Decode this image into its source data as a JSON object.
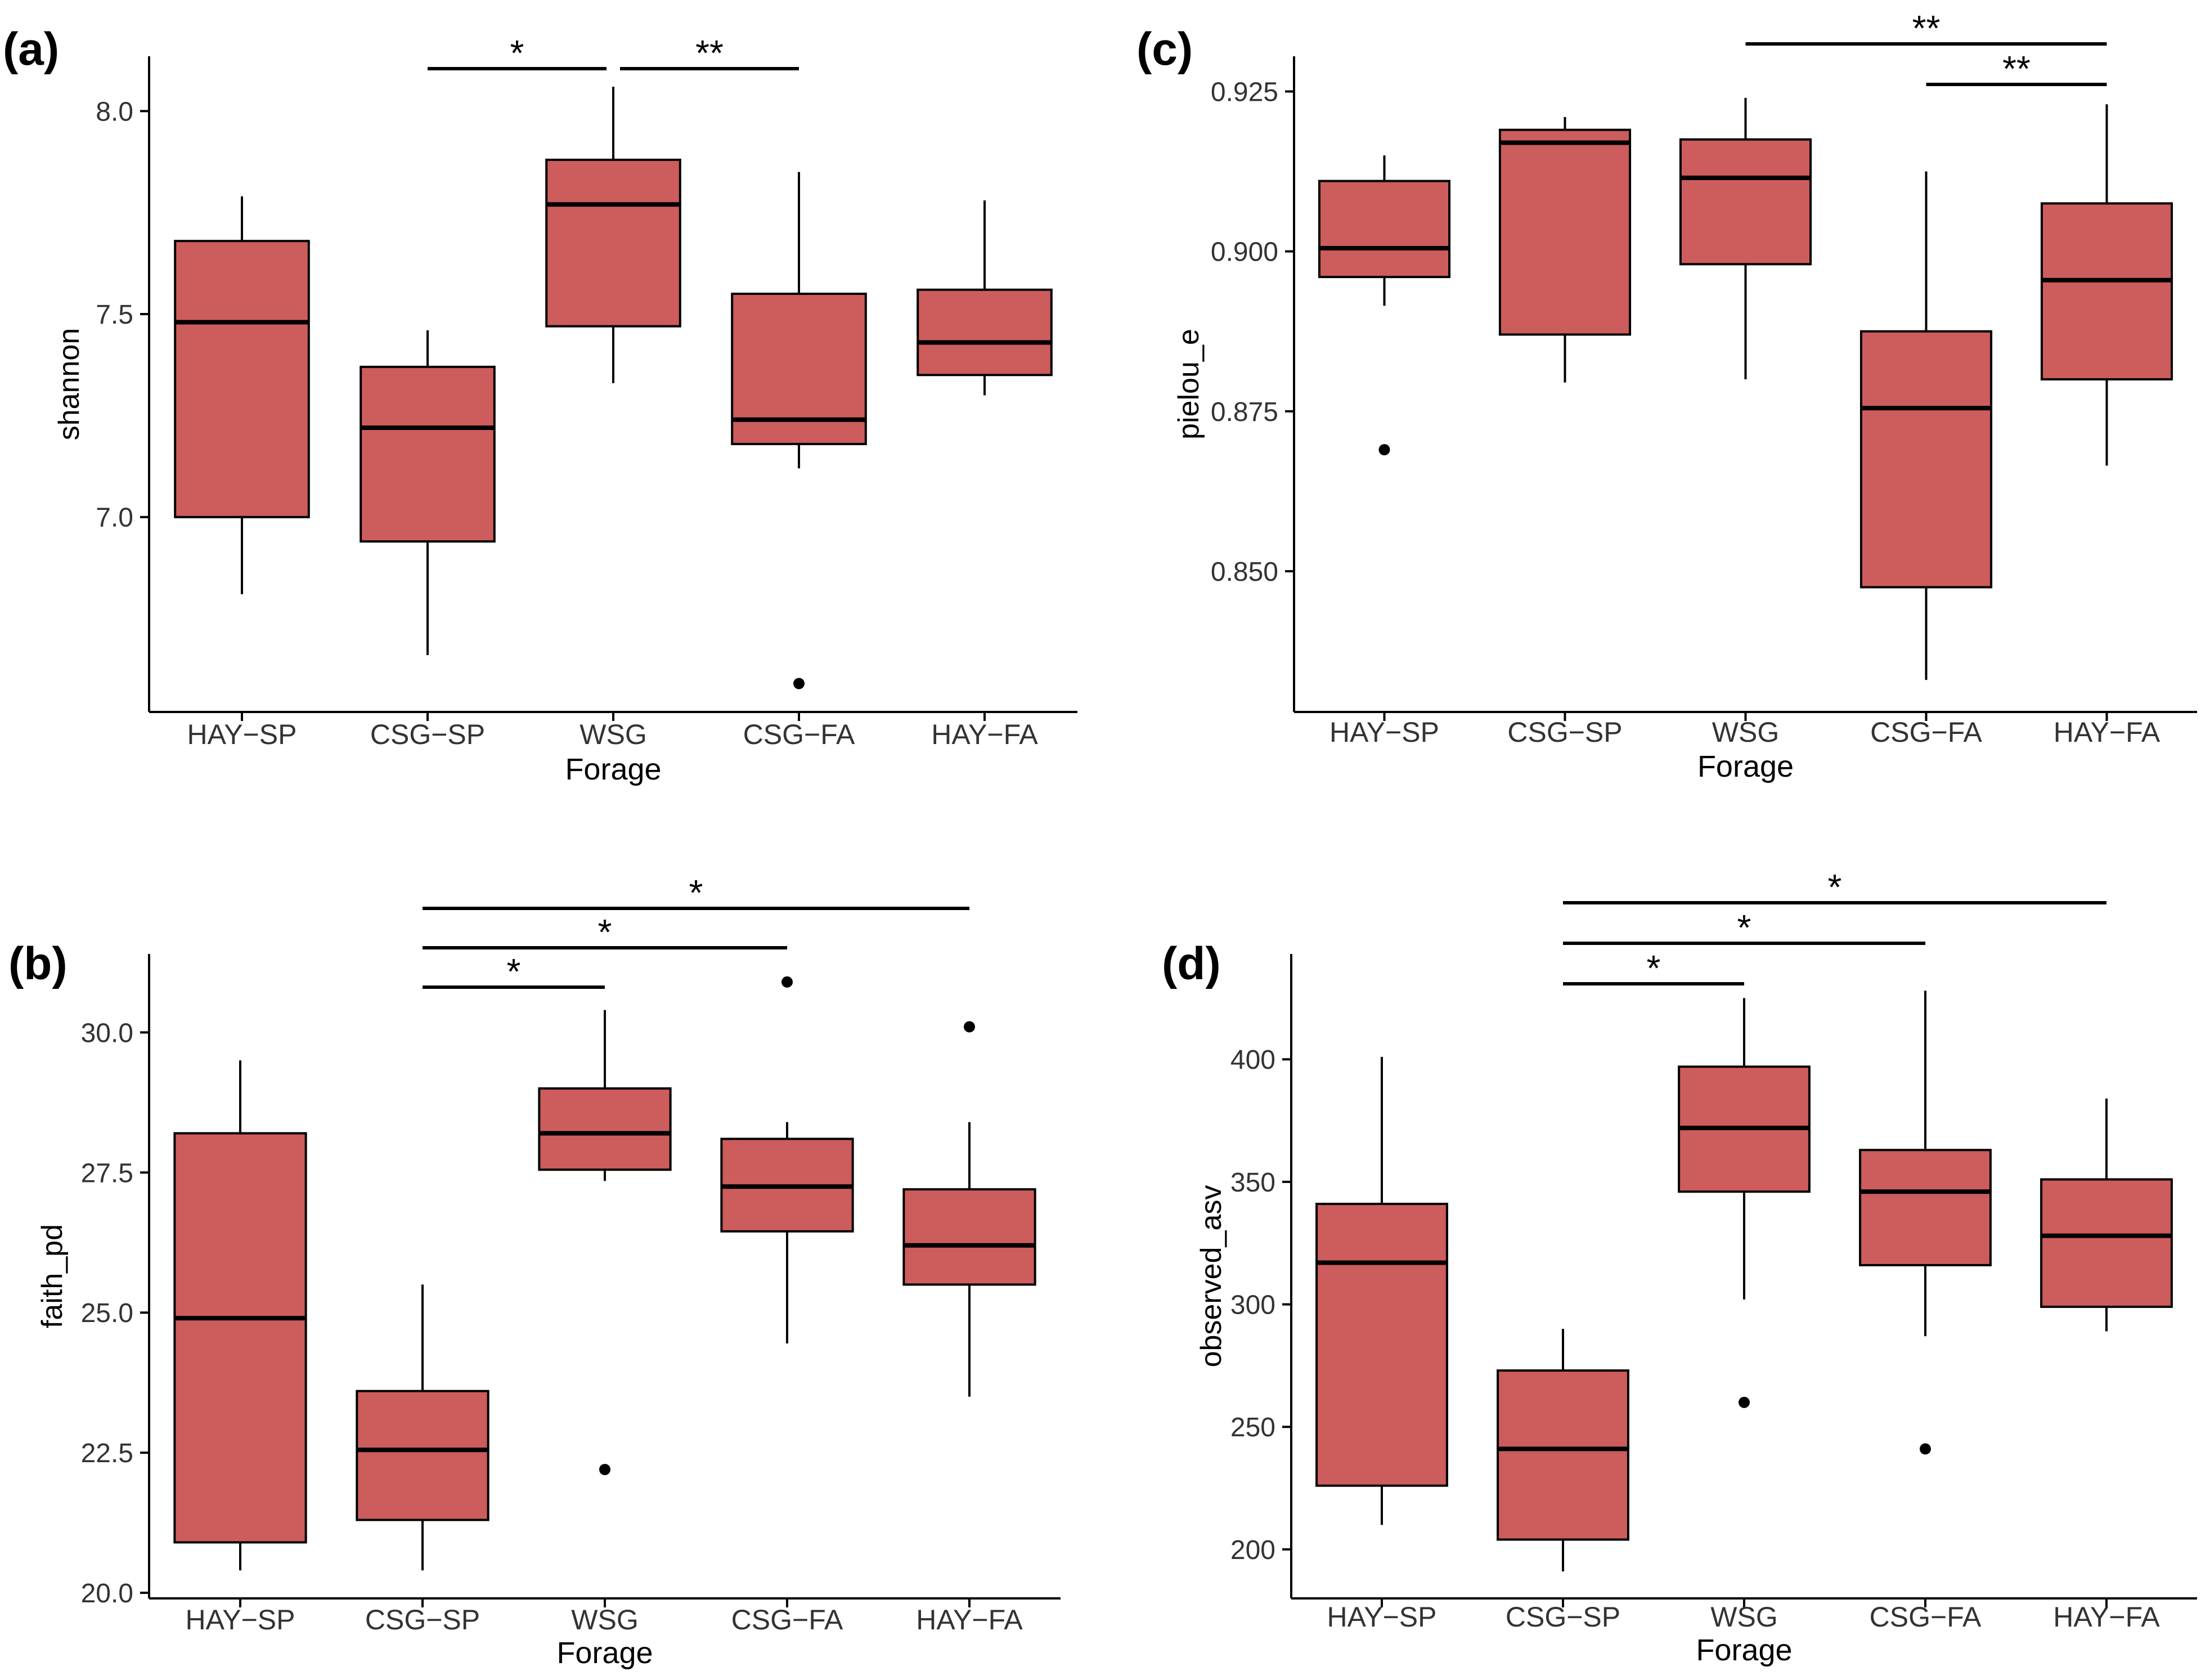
{
  "figure": {
    "box_fill": "#cd5c5c",
    "stroke": "#000000"
  },
  "chart_data": [
    {
      "id": "a",
      "type": "box",
      "panel_label": "(a)",
      "xlabel": "Forage",
      "ylabel": "shannon",
      "ylim": [
        6.52,
        8.135
      ],
      "yticks": [
        7.0,
        7.5,
        8.0
      ],
      "ytick_labels": [
        "7.0",
        "7.5",
        "8.0"
      ],
      "grid": false,
      "categories": [
        "HAY−SP",
        "CSG−SP",
        "WSG",
        "CSG−FA",
        "HAY−FA"
      ],
      "boxes": [
        {
          "whisker_low": 6.81,
          "q1": 7.0,
          "median": 7.48,
          "q3": 7.68,
          "whisker_high": 7.79,
          "outliers": []
        },
        {
          "whisker_low": 6.66,
          "q1": 6.94,
          "median": 7.22,
          "q3": 7.37,
          "whisker_high": 7.46,
          "outliers": []
        },
        {
          "whisker_low": 7.33,
          "q1": 7.47,
          "median": 7.77,
          "q3": 7.88,
          "whisker_high": 8.06,
          "outliers": []
        },
        {
          "whisker_low": 7.12,
          "q1": 7.18,
          "median": 7.24,
          "q3": 7.55,
          "whisker_high": 7.85,
          "outliers": [
            6.59
          ]
        },
        {
          "whisker_low": 7.3,
          "q1": 7.35,
          "median": 7.43,
          "q3": 7.56,
          "whisker_high": 7.78,
          "outliers": []
        }
      ],
      "significance": [
        {
          "from": 1,
          "to": 2,
          "label": "*",
          "level": 1
        },
        {
          "from": 2,
          "to": 3,
          "label": "**",
          "level": 1
        }
      ]
    },
    {
      "id": "b",
      "type": "box",
      "panel_label": "(b)",
      "xlabel": "Forage",
      "ylabel": "faith_pd",
      "ylim": [
        19.9,
        31.4
      ],
      "yticks": [
        20.0,
        22.5,
        25.0,
        27.5,
        30.0
      ],
      "ytick_labels": [
        "20.0",
        "22.5",
        "25.0",
        "27.5",
        "30.0"
      ],
      "grid": false,
      "categories": [
        "HAY−SP",
        "CSG−SP",
        "WSG",
        "CSG−FA",
        "HAY−FA"
      ],
      "boxes": [
        {
          "whisker_low": 20.4,
          "q1": 20.9,
          "median": 24.9,
          "q3": 28.2,
          "whisker_high": 29.5,
          "outliers": []
        },
        {
          "whisker_low": 20.4,
          "q1": 21.3,
          "median": 22.55,
          "q3": 23.6,
          "whisker_high": 25.5,
          "outliers": []
        },
        {
          "whisker_low": 27.35,
          "q1": 27.55,
          "median": 28.2,
          "q3": 29.0,
          "whisker_high": 30.4,
          "outliers": [
            22.2
          ]
        },
        {
          "whisker_low": 24.45,
          "q1": 26.45,
          "median": 27.25,
          "q3": 28.1,
          "whisker_high": 28.4,
          "outliers": [
            30.9
          ]
        },
        {
          "whisker_low": 23.5,
          "q1": 25.5,
          "median": 26.2,
          "q3": 27.2,
          "whisker_high": 28.4,
          "outliers": [
            30.1
          ]
        }
      ],
      "significance": [
        {
          "from": 1,
          "to": 2,
          "label": "*",
          "level": 1
        },
        {
          "from": 1,
          "to": 3,
          "label": "*",
          "level": 2
        },
        {
          "from": 1,
          "to": 4,
          "label": "*",
          "level": 3
        }
      ]
    },
    {
      "id": "c",
      "type": "box",
      "panel_label": "(c)",
      "xlabel": "Forage",
      "ylabel": "pielou_e",
      "ylim": [
        0.828,
        0.9305
      ],
      "yticks": [
        0.85,
        0.875,
        0.9,
        0.925
      ],
      "ytick_labels": [
        "0.850",
        "0.875",
        "0.900",
        "0.925"
      ],
      "grid": false,
      "categories": [
        "HAY−SP",
        "CSG−SP",
        "WSG",
        "CSG−FA",
        "HAY−FA"
      ],
      "boxes": [
        {
          "whisker_low": 0.8915,
          "q1": 0.896,
          "median": 0.9005,
          "q3": 0.911,
          "whisker_high": 0.915,
          "outliers": [
            0.869
          ]
        },
        {
          "whisker_low": 0.8795,
          "q1": 0.887,
          "median": 0.917,
          "q3": 0.919,
          "whisker_high": 0.921,
          "outliers": []
        },
        {
          "whisker_low": 0.88,
          "q1": 0.898,
          "median": 0.9115,
          "q3": 0.9175,
          "whisker_high": 0.924,
          "outliers": []
        },
        {
          "whisker_low": 0.833,
          "q1": 0.8475,
          "median": 0.8755,
          "q3": 0.8875,
          "whisker_high": 0.9125,
          "outliers": []
        },
        {
          "whisker_low": 0.8665,
          "q1": 0.88,
          "median": 0.8955,
          "q3": 0.9075,
          "whisker_high": 0.923,
          "outliers": []
        }
      ],
      "significance": [
        {
          "from": 3,
          "to": 4,
          "label": "**",
          "level": 1
        },
        {
          "from": 2,
          "to": 4,
          "label": "**",
          "level": 2
        }
      ]
    },
    {
      "id": "d",
      "type": "box",
      "panel_label": "(d)",
      "xlabel": "Forage",
      "ylabel": "observed_asv",
      "ylim": [
        180,
        443
      ],
      "yticks": [
        200,
        250,
        300,
        350,
        400
      ],
      "ytick_labels": [
        "200",
        "250",
        "300",
        "350",
        "400"
      ],
      "grid": false,
      "categories": [
        "HAY−SP",
        "CSG−SP",
        "WSG",
        "CSG−FA",
        "HAY−FA"
      ],
      "boxes": [
        {
          "whisker_low": 210,
          "q1": 226,
          "median": 317,
          "q3": 341,
          "whisker_high": 401,
          "outliers": []
        },
        {
          "whisker_low": 191,
          "q1": 204,
          "median": 241,
          "q3": 273,
          "whisker_high": 290,
          "outliers": []
        },
        {
          "whisker_low": 302,
          "q1": 346,
          "median": 372,
          "q3": 397,
          "whisker_high": 425,
          "outliers": [
            260
          ]
        },
        {
          "whisker_low": 287,
          "q1": 316,
          "median": 346,
          "q3": 363,
          "whisker_high": 428,
          "outliers": [
            241
          ]
        },
        {
          "whisker_low": 289,
          "q1": 299,
          "median": 328,
          "q3": 351,
          "whisker_high": 384,
          "outliers": []
        }
      ],
      "significance": [
        {
          "from": 1,
          "to": 2,
          "label": "*",
          "level": 1
        },
        {
          "from": 1,
          "to": 3,
          "label": "*",
          "level": 2
        },
        {
          "from": 1,
          "to": 4,
          "label": "*",
          "level": 3
        }
      ]
    }
  ]
}
